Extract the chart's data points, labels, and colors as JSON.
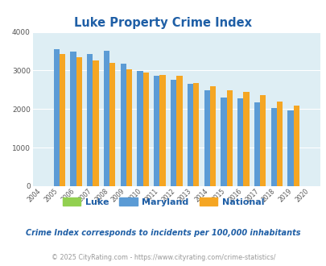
{
  "title": "Luke Property Crime Index",
  "years": [
    2004,
    2005,
    2006,
    2007,
    2008,
    2009,
    2010,
    2011,
    2012,
    2013,
    2014,
    2015,
    2016,
    2017,
    2018,
    2019,
    2020
  ],
  "maryland": [
    0,
    3550,
    3480,
    3420,
    3520,
    3170,
    2990,
    2860,
    2750,
    2650,
    2490,
    2290,
    2270,
    2180,
    2020,
    1960,
    0
  ],
  "national": [
    0,
    3420,
    3340,
    3270,
    3200,
    3030,
    2940,
    2890,
    2860,
    2680,
    2590,
    2490,
    2440,
    2370,
    2200,
    2080,
    0
  ],
  "maryland_color": "#5b9bd5",
  "national_color": "#f5a623",
  "luke_color": "#92d050",
  "plot_bg": "#deeef4",
  "ylim": [
    0,
    4000
  ],
  "yticks": [
    0,
    1000,
    2000,
    3000,
    4000
  ],
  "title_color": "#1f5fa6",
  "legend_text_color": "#1f5fa6",
  "subtitle": "Crime Index corresponds to incidents per 100,000 inhabitants",
  "footer": "© 2025 CityRating.com - https://www.cityrating.com/crime-statistics/",
  "subtitle_color": "#1f5fa6",
  "footer_color": "#999999",
  "bar_width": 0.35
}
